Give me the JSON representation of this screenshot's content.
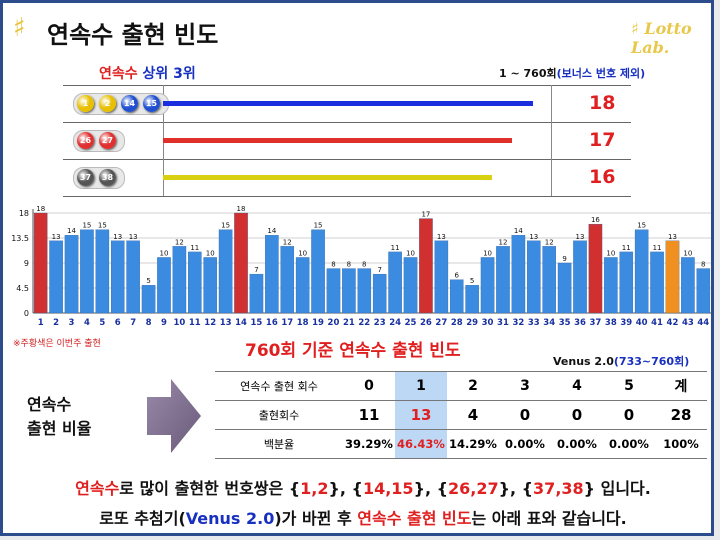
{
  "title": "연속수 출현 빈도",
  "brand_logo": "Lotto Lab.",
  "top3": {
    "heading_red": "연속수",
    "heading_blue": "상위 3위",
    "range_note": "1 ~ 760회(보너스 번호 제외)",
    "rows": [
      {
        "balls": [
          "1",
          "2",
          "14",
          "15"
        ],
        "ball_colors": [
          "#e8c000",
          "#e8c000",
          "#2050d0",
          "#2050d0"
        ],
        "count": "18",
        "count_value": 18,
        "line_color": "#1a2ee0"
      },
      {
        "balls": [
          "26",
          "27"
        ],
        "ball_colors": [
          "#e03030",
          "#e03030"
        ],
        "count": "17",
        "count_value": 17,
        "line_color": "#e0302a"
      },
      {
        "balls": [
          "37",
          "38"
        ],
        "ball_colors": [
          "#555555",
          "#555555"
        ],
        "count": "16",
        "count_value": 16,
        "line_color": "#d8d010"
      }
    ]
  },
  "chart_data": {
    "type": "bar",
    "categories": [
      "1",
      "2",
      "3",
      "4",
      "5",
      "6",
      "7",
      "8",
      "9",
      "10",
      "11",
      "12",
      "13",
      "14",
      "15",
      "16",
      "17",
      "18",
      "19",
      "20",
      "21",
      "22",
      "23",
      "24",
      "25",
      "26",
      "27",
      "28",
      "29",
      "30",
      "31",
      "32",
      "33",
      "34",
      "35",
      "36",
      "37",
      "38",
      "39",
      "40",
      "41",
      "42",
      "43",
      "44"
    ],
    "values": [
      18,
      13,
      14,
      15,
      15,
      13,
      13,
      5,
      10,
      12,
      11,
      10,
      15,
      18,
      7,
      14,
      12,
      10,
      15,
      8,
      8,
      8,
      7,
      11,
      10,
      17,
      13,
      6,
      5,
      10,
      12,
      14,
      13,
      12,
      9,
      13,
      16,
      10,
      11,
      15,
      11,
      13,
      10,
      8
    ],
    "bar_colors": [
      "#d03030",
      "#3b8ce0",
      "#3b8ce0",
      "#3b8ce0",
      "#3b8ce0",
      "#3b8ce0",
      "#3b8ce0",
      "#3b8ce0",
      "#3b8ce0",
      "#3b8ce0",
      "#3b8ce0",
      "#3b8ce0",
      "#3b8ce0",
      "#d03030",
      "#3b8ce0",
      "#3b8ce0",
      "#3b8ce0",
      "#3b8ce0",
      "#3b8ce0",
      "#3b8ce0",
      "#3b8ce0",
      "#3b8ce0",
      "#3b8ce0",
      "#3b8ce0",
      "#3b8ce0",
      "#d03030",
      "#3b8ce0",
      "#3b8ce0",
      "#3b8ce0",
      "#3b8ce0",
      "#3b8ce0",
      "#3b8ce0",
      "#3b8ce0",
      "#3b8ce0",
      "#3b8ce0",
      "#3b8ce0",
      "#d03030",
      "#3b8ce0",
      "#3b8ce0",
      "#3b8ce0",
      "#3b8ce0",
      "#f09020",
      "#3b8ce0",
      "#3b8ce0"
    ],
    "yticks": [
      "0",
      "4.5",
      "9",
      "13.5",
      "18"
    ],
    "ylim": [
      0,
      18
    ],
    "grid": true
  },
  "chart_footnote": "※주황색은 이번주 출현",
  "table": {
    "title": "760회 기준 연속수 출현 빈도",
    "venus_note": "Venus 2.0(733~760회)",
    "highlight_col": 1,
    "header": {
      "label": "연속수 출현 회수",
      "cols": [
        "0",
        "1",
        "2",
        "3",
        "4",
        "5",
        "계"
      ]
    },
    "count_row": {
      "label": "출현회수",
      "cols": [
        "11",
        "13",
        "4",
        "0",
        "0",
        "0",
        "28"
      ]
    },
    "pct_row": {
      "label": "백분율",
      "cols": [
        "39.29%",
        "46.43%",
        "14.29%",
        "0.00%",
        "0.00%",
        "0.00%",
        "100%"
      ]
    }
  },
  "ratio_label": [
    "연속수",
    "출현 비율"
  ],
  "bottom": {
    "line1": [
      {
        "t": "연속수",
        "c": "red"
      },
      {
        "t": "로 많이 출현한 번호쌍은 {",
        "c": ""
      },
      {
        "t": "1,2",
        "c": "red"
      },
      {
        "t": "}, {",
        "c": ""
      },
      {
        "t": "14,15",
        "c": "red"
      },
      {
        "t": "}, {",
        "c": ""
      },
      {
        "t": "26,27",
        "c": "red"
      },
      {
        "t": "}, {",
        "c": ""
      },
      {
        "t": "37,38",
        "c": "red"
      },
      {
        "t": "} 입니다.",
        "c": ""
      }
    ],
    "line2": [
      {
        "t": "로또 추첨기(",
        "c": ""
      },
      {
        "t": "Venus 2.0",
        "c": "blue"
      },
      {
        "t": ")가 바뀐 후 ",
        "c": ""
      },
      {
        "t": "연속수 출현 빈도",
        "c": "red"
      },
      {
        "t": "는 아래 표와 같습니다.",
        "c": ""
      }
    ]
  }
}
